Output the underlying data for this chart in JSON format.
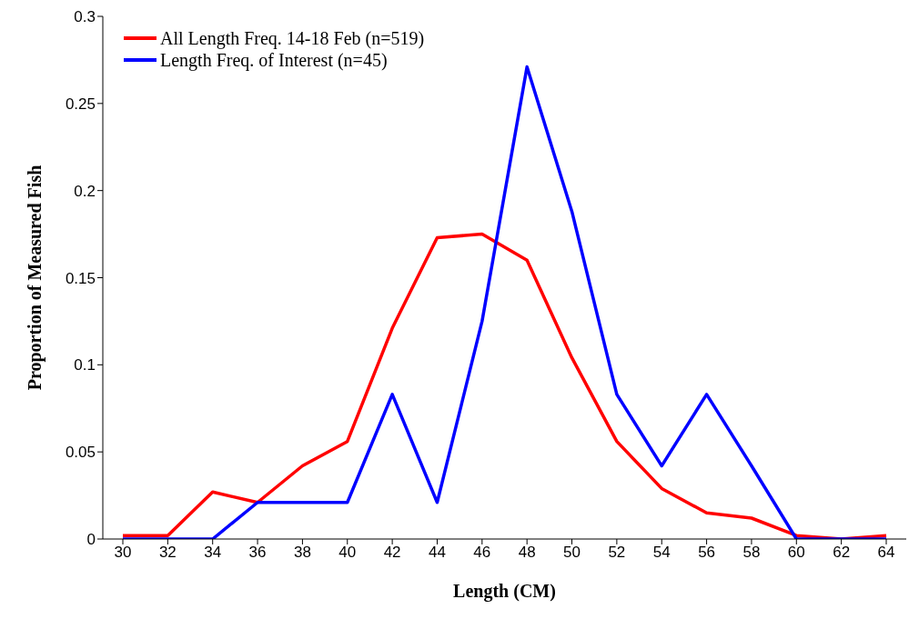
{
  "chart_data": {
    "type": "line",
    "xlabel": "Length (CM)",
    "ylabel": "Proportion of Measured Fish",
    "categories": [
      "30",
      "32",
      "34",
      "36",
      "38",
      "40",
      "42",
      "44",
      "46",
      "48",
      "50",
      "52",
      "54",
      "56",
      "58",
      "60",
      "62",
      "64"
    ],
    "series": [
      {
        "name": "All Length Freq. 14-18 Feb (n=519)",
        "color": "#ff0000",
        "values": [
          0.002,
          0.002,
          0.027,
          0.021,
          0.042,
          0.056,
          0.121,
          0.173,
          0.175,
          0.16,
          0.104,
          0.056,
          0.029,
          0.015,
          0.012,
          0.002,
          0,
          0.002
        ]
      },
      {
        "name": "Length Freq. of Interest (n=45)",
        "color": "#0000ff",
        "values": [
          0,
          0,
          0,
          0.021,
          0.021,
          0.021,
          0.083,
          0.021,
          0.125,
          0.271,
          0.188,
          0.083,
          0.042,
          0.083,
          0.042,
          0,
          0,
          0
        ]
      }
    ],
    "ylim": [
      0,
      0.3
    ],
    "yticks": [
      0,
      0.05,
      0.1,
      0.15,
      0.2,
      0.25,
      0.3
    ],
    "grid": false,
    "legend": "top left",
    "marker": "none",
    "line_style": "solid"
  }
}
